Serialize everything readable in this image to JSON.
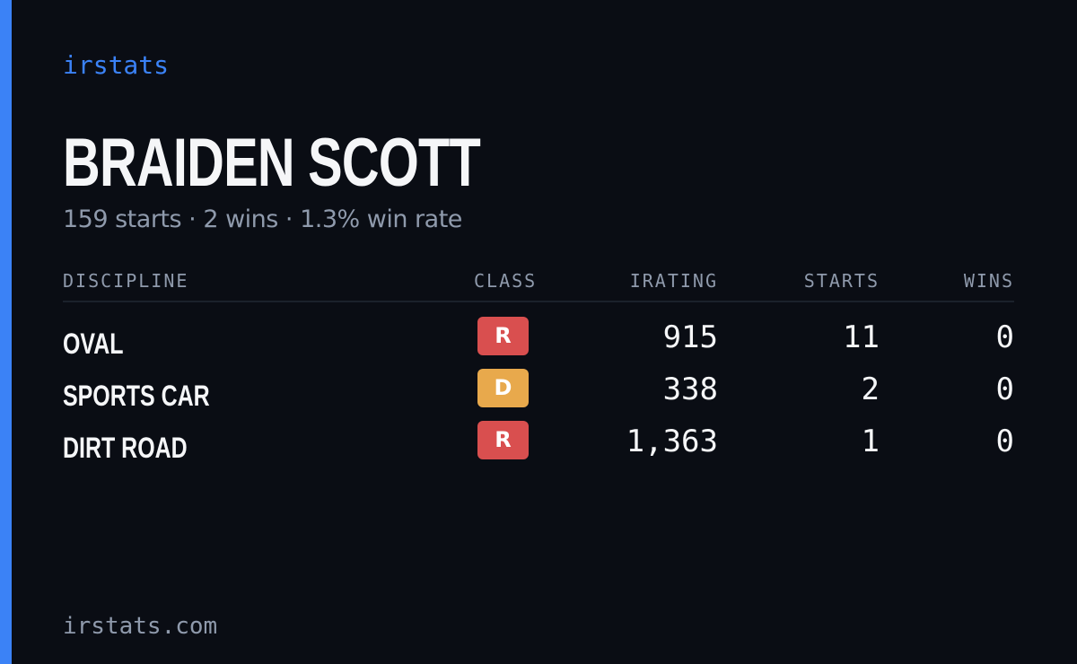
{
  "brand": "irstats",
  "accent_color": "#3b82f6",
  "driver": {
    "name": "BRAIDEN SCOTT",
    "summary": "159 starts · 2 wins · 1.3% win rate"
  },
  "table": {
    "headers": {
      "discipline": "DISCIPLINE",
      "class": "CLASS",
      "irating": "IRATING",
      "starts": "STARTS",
      "wins": "WINS"
    },
    "rows": [
      {
        "discipline": "OVAL",
        "class": "R",
        "class_color": "#d94f4f",
        "irating": "915",
        "starts": "11",
        "wins": "0"
      },
      {
        "discipline": "SPORTS CAR",
        "class": "D",
        "class_color": "#e8a94c",
        "irating": "338",
        "starts": "2",
        "wins": "0"
      },
      {
        "discipline": "DIRT ROAD",
        "class": "R",
        "class_color": "#d94f4f",
        "irating": "1,363",
        "starts": "1",
        "wins": "0"
      }
    ]
  },
  "footer": "irstats.com"
}
